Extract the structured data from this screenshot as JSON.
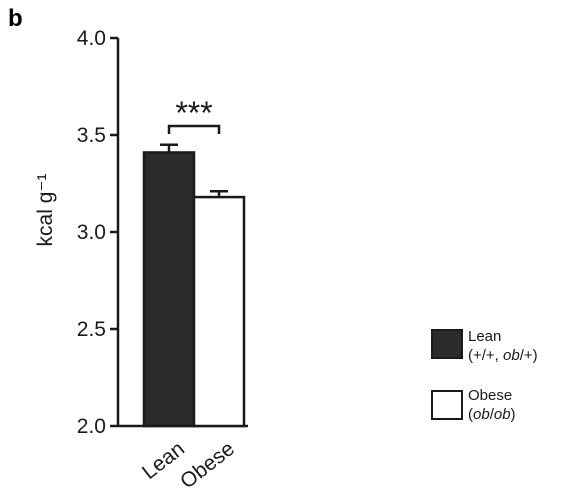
{
  "panel_label": "b",
  "colors": {
    "lean": "#2b2b2b",
    "obese": "#ffffff",
    "axis": "#1a1a1a"
  },
  "chart_data": {
    "type": "bar",
    "categories": [
      "Lean",
      "Obese"
    ],
    "values": [
      3.41,
      3.18
    ],
    "errors": [
      0.04,
      0.03
    ],
    "ylabel": "kcal g⁻¹",
    "ylim": [
      2.0,
      4.0
    ],
    "yticks": [
      "2.0",
      "2.5",
      "3.0",
      "3.5",
      "4.0"
    ],
    "grid": false,
    "significance": "***",
    "legend": {
      "placement": "bottom-right",
      "entries": [
        {
          "title": "Lean",
          "genotype_pre": "(+/+, ",
          "genotype_italic": "ob",
          "genotype_post": "/+)"
        },
        {
          "title": "Obese",
          "genotype_pre": "(",
          "genotype_italic": "ob",
          "genotype_mid": "/",
          "genotype_italic2": "ob",
          "genotype_post": ")"
        }
      ]
    }
  }
}
